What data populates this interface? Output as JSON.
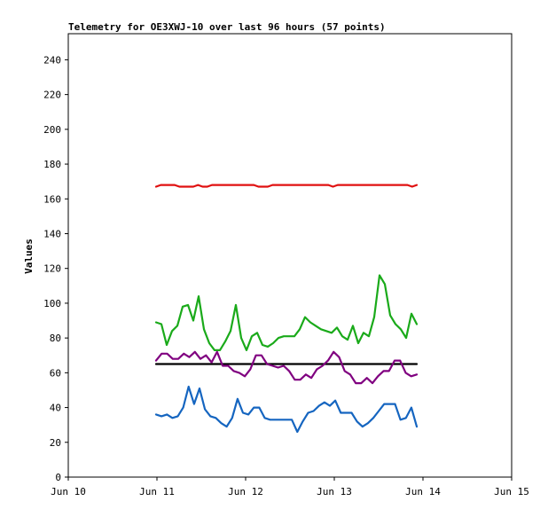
{
  "chart_data": {
    "type": "line",
    "title": "Telemetry for OE3XWJ-10 over last 96 hours (57 points)",
    "xlabel": "",
    "ylabel": "Values",
    "xlim": [
      0,
      5
    ],
    "ylim": [
      0,
      255
    ],
    "x_ticks": [
      {
        "value": 0,
        "label": "Jun 10"
      },
      {
        "value": 1,
        "label": "Jun 11"
      },
      {
        "value": 2,
        "label": "Jun 12"
      },
      {
        "value": 3,
        "label": "Jun 13"
      },
      {
        "value": 4,
        "label": "Jun 14"
      },
      {
        "value": 5,
        "label": "Jun 15"
      }
    ],
    "y_ticks": [
      0,
      20,
      40,
      60,
      80,
      100,
      120,
      140,
      160,
      180,
      200,
      220,
      240
    ],
    "grid": false,
    "legend": "none",
    "series": [
      {
        "color": "#e01010",
        "values": [
          167,
          168,
          168,
          168,
          168,
          167,
          167,
          167,
          167,
          168,
          167,
          167,
          168,
          168,
          168,
          168,
          168,
          168,
          168,
          168,
          168,
          168,
          167,
          167,
          167,
          168,
          168,
          168,
          168,
          168,
          168,
          168,
          168,
          168,
          168,
          168,
          168,
          168,
          167,
          168,
          168,
          168,
          168,
          168,
          168,
          168,
          168,
          168,
          168,
          168,
          168,
          168,
          168,
          168,
          168,
          167,
          168
        ]
      },
      {
        "color": "#1aaa1a",
        "values": [
          89,
          88,
          76,
          84,
          87,
          98,
          99,
          90,
          104,
          85,
          77,
          73,
          73,
          78,
          84,
          99,
          80,
          73,
          81,
          83,
          76,
          75,
          77,
          80,
          81,
          81,
          81,
          85,
          92,
          89,
          87,
          85,
          84,
          83,
          86,
          81,
          79,
          87,
          77,
          83,
          81,
          92,
          116,
          111,
          93,
          88,
          85,
          80,
          94,
          88
        ]
      },
      {
        "color": "#000000",
        "values": [
          65,
          65,
          65,
          65,
          65,
          65,
          65,
          65,
          65,
          65,
          65,
          65,
          65,
          65,
          65,
          65,
          65,
          65,
          65,
          65,
          65,
          65,
          65,
          65,
          65,
          65,
          65,
          65,
          65,
          65,
          65,
          65,
          65,
          65,
          65,
          65,
          65,
          65,
          65,
          65,
          65,
          65,
          65,
          65,
          65,
          65,
          65,
          65,
          65,
          65,
          65,
          65,
          65,
          65,
          65,
          65,
          65
        ]
      },
      {
        "color": "#800080",
        "values": [
          67,
          71,
          71,
          68,
          68,
          71,
          69,
          72,
          68,
          70,
          66,
          72,
          64,
          64,
          61,
          60,
          58,
          62,
          70,
          70,
          65,
          64,
          63,
          64,
          61,
          56,
          56,
          59,
          57,
          62,
          64,
          67,
          72,
          69,
          61,
          59,
          54,
          54,
          57,
          54,
          58,
          61,
          61,
          67,
          67,
          60,
          58,
          59
        ]
      },
      {
        "color": "#1565c0",
        "values": [
          36,
          35,
          36,
          34,
          35,
          40,
          52,
          42,
          51,
          39,
          35,
          34,
          31,
          29,
          34,
          45,
          37,
          36,
          40,
          40,
          34,
          33,
          33,
          33,
          33,
          33,
          26,
          32,
          37,
          38,
          41,
          43,
          41,
          44,
          37,
          37,
          37,
          32,
          29,
          31,
          34,
          38,
          42,
          42,
          42,
          33,
          34,
          40,
          29
        ]
      }
    ]
  }
}
